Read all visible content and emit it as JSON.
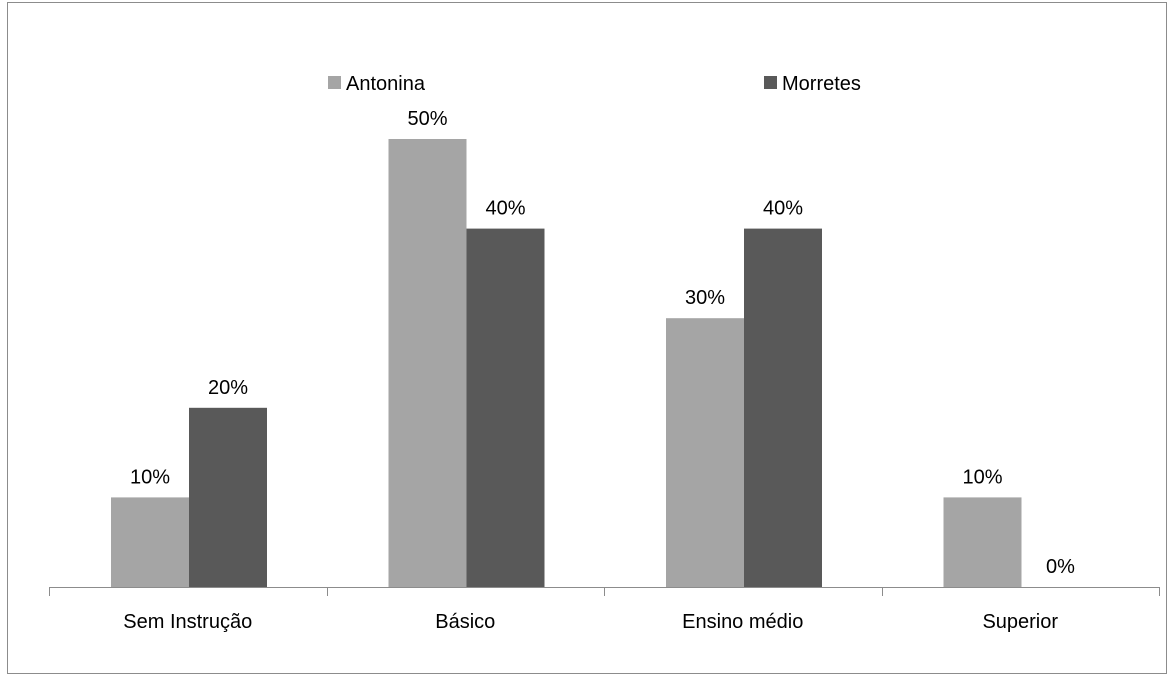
{
  "chart_data": {
    "type": "bar",
    "title": "",
    "xlabel": "",
    "ylabel": "",
    "ylim": [
      0,
      55
    ],
    "grid": false,
    "legend_position": "top",
    "categories": [
      "Sem Instrução",
      "Básico",
      "Ensino médio",
      "Superior"
    ],
    "series": [
      {
        "name": "Antonina",
        "color": "#a5a5a5",
        "values": [
          10,
          50,
          30,
          10
        ],
        "labels": [
          "10%",
          "50%",
          "30%",
          "10%"
        ]
      },
      {
        "name": "Morretes",
        "color": "#595959",
        "values": [
          20,
          40,
          40,
          0
        ],
        "labels": [
          "20%",
          "40%",
          "40%",
          "0%"
        ]
      }
    ]
  }
}
